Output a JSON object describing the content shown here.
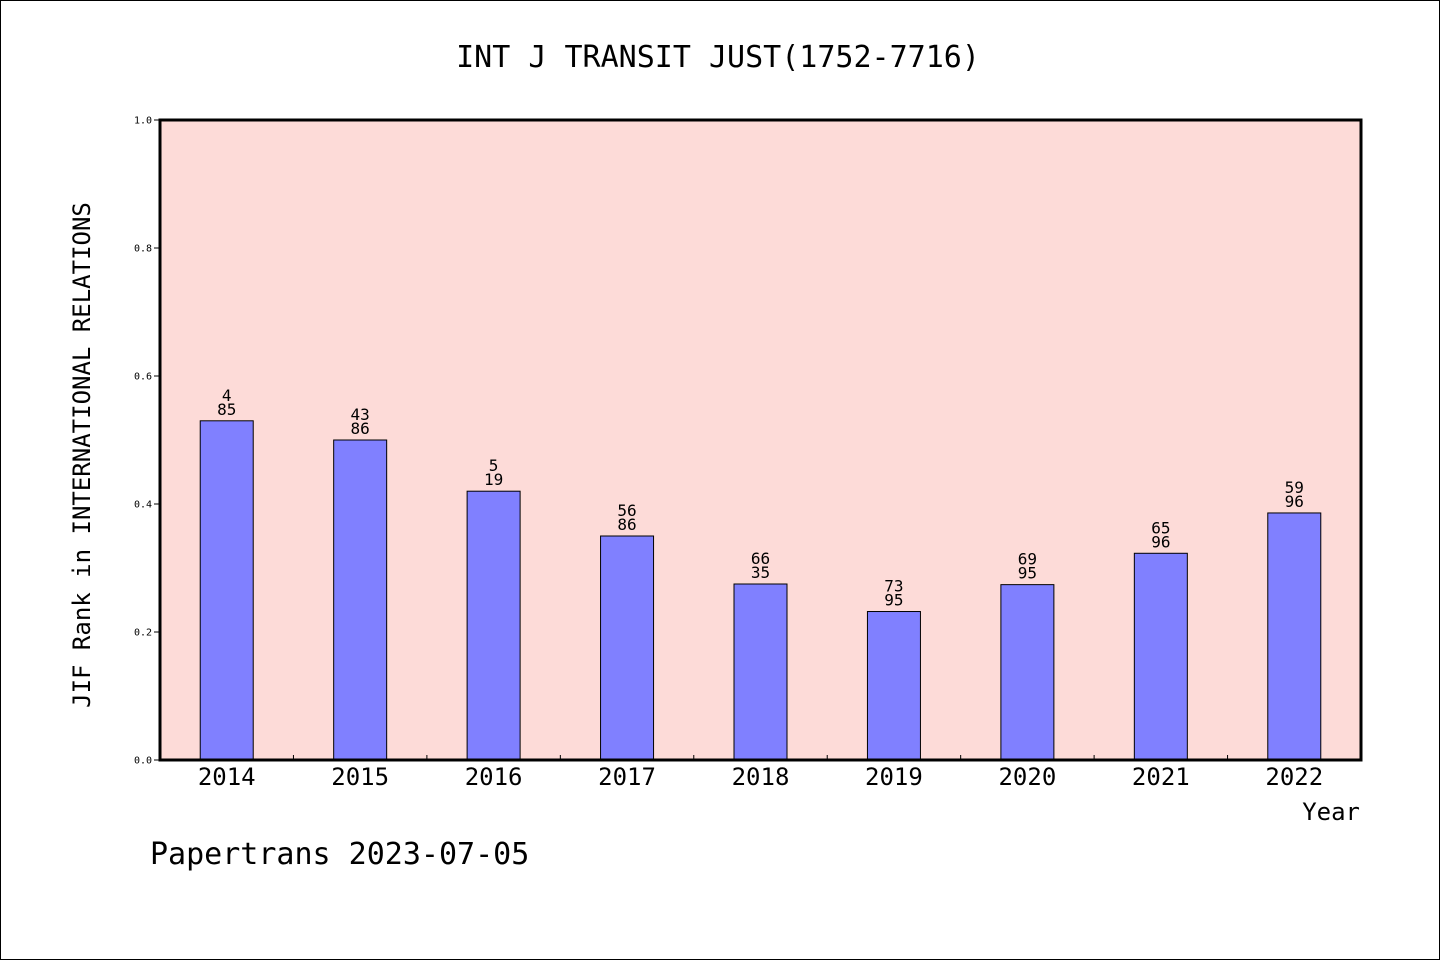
{
  "chart_data": {
    "type": "bar",
    "title": "INT J TRANSIT JUST(1752-7716)",
    "xlabel": "Year",
    "ylabel": "JIF Rank in INTERNATIONAL RELATIONS",
    "categories": [
      "2014",
      "2015",
      "2016",
      "2017",
      "2018",
      "2019",
      "2020",
      "2021",
      "2022"
    ],
    "values": [
      0.53,
      0.5,
      0.42,
      0.35,
      0.275,
      0.232,
      0.274,
      0.323,
      0.386
    ],
    "rank_labels": [
      {
        "top": "4",
        "bottom": "85"
      },
      {
        "top": "43",
        "bottom": "86"
      },
      {
        "top": "5",
        "bottom": "19"
      },
      {
        "top": "56",
        "bottom": "86"
      },
      {
        "top": "66",
        "bottom": "35"
      },
      {
        "top": "73",
        "bottom": "95"
      },
      {
        "top": "69",
        "bottom": "95"
      },
      {
        "top": "65",
        "bottom": "96"
      },
      {
        "top": "59",
        "bottom": "96"
      }
    ],
    "yticks": [
      "0.0",
      "0.2",
      "0.4",
      "0.6",
      "0.8",
      "1.0"
    ],
    "ylim": [
      0,
      1
    ],
    "grid": false,
    "colors": {
      "plot_background": "#fddbd8",
      "bar_fill": "#8080ff",
      "bar_stroke": "#000000"
    }
  },
  "footer": {
    "credit": "Papertrans 2023-07-05"
  }
}
